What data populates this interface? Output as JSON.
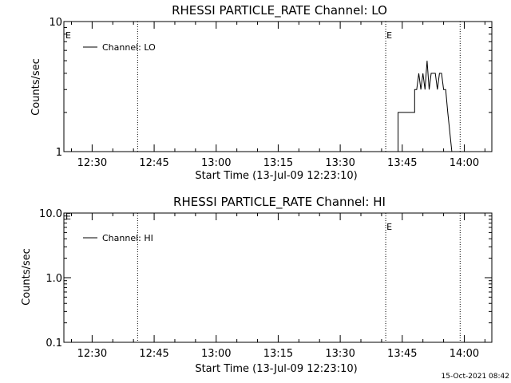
{
  "footer_timestamp": "15-Oct-2021 08:42",
  "chart_data": [
    {
      "type": "line",
      "title": "RHESSI PARTICLE_RATE Channel: LO",
      "xlabel": "Start Time (13-Jul-09 12:23:10)",
      "ylabel": "Counts/sec",
      "yscale": "log",
      "ylim": [
        1,
        10
      ],
      "ytick_labels": [
        "1",
        "10"
      ],
      "yticks": [
        1,
        10
      ],
      "xlim": [
        "12:23:10",
        "14:06:40"
      ],
      "xticks": [
        "12:30",
        "12:45",
        "13:00",
        "13:15",
        "13:30",
        "13:45",
        "14:00"
      ],
      "xticks_minutes": [
        750,
        765,
        780,
        795,
        810,
        825,
        840
      ],
      "legend": {
        "label": "Channel: LO",
        "placement": "top-left"
      },
      "event_lines": [
        {
          "time": "12:41",
          "label": "",
          "style": "dotted"
        },
        {
          "time": "13:41",
          "label": "E",
          "style": "dotted"
        },
        {
          "time": "13:59",
          "label": "",
          "style": "dotted"
        }
      ],
      "edge_marker": "E",
      "series": [
        {
          "name": "Channel: LO",
          "x": [
            "13:44",
            "13:44",
            "13:46",
            "13:46",
            "13:48",
            "13:48",
            "13:48.5",
            "13:49",
            "13:49.5",
            "13:50",
            "13:50.5",
            "13:51",
            "13:51.5",
            "13:52",
            "13:52.5",
            "13:53",
            "13:53.5",
            "13:54",
            "13:54.5",
            "13:55",
            "13:55.5",
            "13:56",
            "13:56",
            "13:57",
            "13:57"
          ],
          "y": [
            1,
            2,
            2,
            2,
            2,
            3,
            3,
            4,
            3,
            4,
            3,
            5,
            3,
            4,
            4,
            4,
            3,
            4,
            4,
            3,
            3,
            2,
            2,
            1,
            1
          ]
        }
      ]
    },
    {
      "type": "line",
      "title": "RHESSI PARTICLE_RATE Channel: HI",
      "xlabel": "Start Time (13-Jul-09 12:23:10)",
      "ylabel": "Counts/sec",
      "yscale": "log",
      "ylim": [
        0.1,
        10
      ],
      "ytick_labels": [
        "0.1",
        "1.0",
        "10.0"
      ],
      "yticks": [
        0.1,
        1,
        10
      ],
      "xlim": [
        "12:23:10",
        "14:06:40"
      ],
      "xticks": [
        "12:30",
        "12:45",
        "13:00",
        "13:15",
        "13:30",
        "13:45",
        "14:00"
      ],
      "xticks_minutes": [
        750,
        765,
        780,
        795,
        810,
        825,
        840
      ],
      "legend": {
        "label": "Channel: HI",
        "placement": "top-left"
      },
      "event_lines": [
        {
          "time": "12:41",
          "label": "",
          "style": "dotted"
        },
        {
          "time": "13:41",
          "label": "E",
          "style": "dotted"
        },
        {
          "time": "13:59",
          "label": "",
          "style": "dotted"
        }
      ],
      "edge_marker": "E",
      "series": [
        {
          "name": "Channel: HI",
          "x": [],
          "y": []
        }
      ]
    }
  ]
}
